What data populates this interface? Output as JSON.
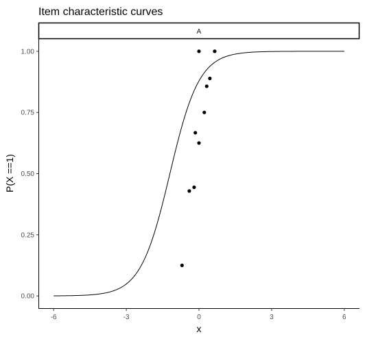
{
  "chart_data": {
    "type": "scatter",
    "title": "Item characteristic curves",
    "facet_label": "A",
    "xlabel": "x",
    "ylabel": "P(X ==1)",
    "xlim": [
      -6.6,
      6.6
    ],
    "ylim": [
      -0.05,
      1.05
    ],
    "x_ticks": [
      -6,
      -3,
      0,
      3,
      6
    ],
    "x_tick_labels": [
      "-6",
      "-3",
      "0",
      "3",
      "6"
    ],
    "y_ticks": [
      0,
      0.25,
      0.5,
      0.75,
      1
    ],
    "y_tick_labels": [
      "0.00",
      "0.25",
      "0.50",
      "0.75",
      "1.00"
    ],
    "grid": false,
    "points": [
      {
        "x": -0.7,
        "y": 0.125
      },
      {
        "x": -0.4,
        "y": 0.429
      },
      {
        "x": -0.2,
        "y": 0.444
      },
      {
        "x": -0.15,
        "y": 0.667
      },
      {
        "x": 0.0,
        "y": 0.625
      },
      {
        "x": 0.0,
        "y": 1.0
      },
      {
        "x": 0.22,
        "y": 0.75
      },
      {
        "x": 0.32,
        "y": 0.857
      },
      {
        "x": 0.45,
        "y": 0.889
      },
      {
        "x": 0.65,
        "y": 1.0
      }
    ],
    "curve": {
      "model": "logistic",
      "location": -1.2,
      "slope": 1.65,
      "x_range": [
        -6,
        6
      ]
    }
  }
}
